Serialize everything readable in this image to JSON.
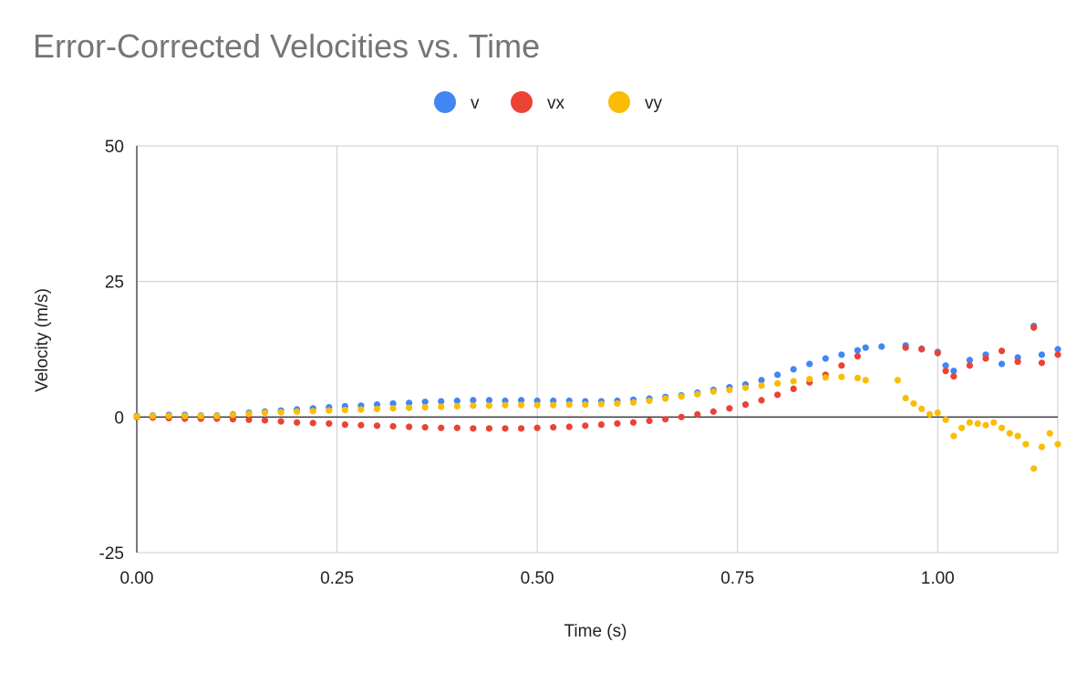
{
  "chart_data": {
    "type": "scatter",
    "title": "Error-Corrected Velocities vs. Time",
    "xlabel": "Time (s)",
    "ylabel": "Velocity (m/s)",
    "xlim": [
      0,
      1.15
    ],
    "ylim": [
      -25,
      50
    ],
    "x_ticks": [
      "0.00",
      "0.25",
      "0.50",
      "0.75",
      "1.00"
    ],
    "y_ticks": [
      "-25",
      "0",
      "25",
      "50"
    ],
    "grid": true,
    "legend_position": "top",
    "series": [
      {
        "name": "v",
        "color": "#4285f4",
        "points": [
          [
            0.0,
            0.2
          ],
          [
            0.02,
            0.3
          ],
          [
            0.04,
            0.4
          ],
          [
            0.06,
            0.4
          ],
          [
            0.08,
            0.3
          ],
          [
            0.1,
            0.3
          ],
          [
            0.12,
            0.5
          ],
          [
            0.14,
            0.8
          ],
          [
            0.16,
            1.0
          ],
          [
            0.18,
            1.2
          ],
          [
            0.2,
            1.4
          ],
          [
            0.22,
            1.6
          ],
          [
            0.24,
            1.8
          ],
          [
            0.26,
            2.0
          ],
          [
            0.28,
            2.1
          ],
          [
            0.3,
            2.3
          ],
          [
            0.32,
            2.5
          ],
          [
            0.34,
            2.6
          ],
          [
            0.36,
            2.8
          ],
          [
            0.38,
            2.9
          ],
          [
            0.4,
            3.0
          ],
          [
            0.42,
            3.1
          ],
          [
            0.44,
            3.1
          ],
          [
            0.46,
            3.0
          ],
          [
            0.48,
            3.1
          ],
          [
            0.5,
            3.0
          ],
          [
            0.52,
            3.0
          ],
          [
            0.54,
            3.0
          ],
          [
            0.56,
            2.9
          ],
          [
            0.58,
            2.9
          ],
          [
            0.6,
            3.0
          ],
          [
            0.62,
            3.2
          ],
          [
            0.64,
            3.4
          ],
          [
            0.66,
            3.7
          ],
          [
            0.68,
            4.0
          ],
          [
            0.7,
            4.5
          ],
          [
            0.72,
            5.0
          ],
          [
            0.74,
            5.5
          ],
          [
            0.76,
            6.0
          ],
          [
            0.78,
            6.8
          ],
          [
            0.8,
            7.8
          ],
          [
            0.82,
            8.8
          ],
          [
            0.84,
            9.8
          ],
          [
            0.86,
            10.8
          ],
          [
            0.88,
            11.5
          ],
          [
            0.9,
            12.3
          ],
          [
            0.91,
            12.8
          ],
          [
            0.93,
            13.0
          ],
          [
            0.96,
            13.2
          ],
          [
            0.98,
            12.6
          ],
          [
            1.0,
            12.0
          ],
          [
            1.01,
            9.5
          ],
          [
            1.02,
            8.5
          ],
          [
            1.04,
            10.5
          ],
          [
            1.06,
            11.5
          ],
          [
            1.08,
            9.8
          ],
          [
            1.1,
            11.0
          ],
          [
            1.12,
            16.8
          ],
          [
            1.13,
            11.5
          ],
          [
            1.15,
            12.5
          ]
        ]
      },
      {
        "name": "vx",
        "color": "#ea4335",
        "points": [
          [
            0.0,
            0.0
          ],
          [
            0.02,
            -0.1
          ],
          [
            0.04,
            -0.2
          ],
          [
            0.06,
            -0.3
          ],
          [
            0.08,
            -0.3
          ],
          [
            0.1,
            -0.3
          ],
          [
            0.12,
            -0.4
          ],
          [
            0.14,
            -0.5
          ],
          [
            0.16,
            -0.6
          ],
          [
            0.18,
            -0.8
          ],
          [
            0.2,
            -1.0
          ],
          [
            0.22,
            -1.1
          ],
          [
            0.24,
            -1.2
          ],
          [
            0.26,
            -1.4
          ],
          [
            0.28,
            -1.5
          ],
          [
            0.3,
            -1.6
          ],
          [
            0.32,
            -1.7
          ],
          [
            0.34,
            -1.8
          ],
          [
            0.36,
            -1.9
          ],
          [
            0.38,
            -2.0
          ],
          [
            0.4,
            -2.0
          ],
          [
            0.42,
            -2.1
          ],
          [
            0.44,
            -2.1
          ],
          [
            0.46,
            -2.1
          ],
          [
            0.48,
            -2.1
          ],
          [
            0.5,
            -2.0
          ],
          [
            0.52,
            -1.9
          ],
          [
            0.54,
            -1.8
          ],
          [
            0.56,
            -1.6
          ],
          [
            0.58,
            -1.4
          ],
          [
            0.6,
            -1.2
          ],
          [
            0.62,
            -1.0
          ],
          [
            0.64,
            -0.7
          ],
          [
            0.66,
            -0.4
          ],
          [
            0.68,
            0.0
          ],
          [
            0.7,
            0.5
          ],
          [
            0.72,
            1.0
          ],
          [
            0.74,
            1.6
          ],
          [
            0.76,
            2.3
          ],
          [
            0.78,
            3.1
          ],
          [
            0.8,
            4.1
          ],
          [
            0.82,
            5.2
          ],
          [
            0.84,
            6.4
          ],
          [
            0.86,
            7.8
          ],
          [
            0.88,
            9.5
          ],
          [
            0.9,
            11.2
          ],
          [
            0.96,
            12.8
          ],
          [
            0.98,
            12.5
          ],
          [
            1.0,
            11.8
          ],
          [
            1.01,
            8.5
          ],
          [
            1.02,
            7.5
          ],
          [
            1.04,
            9.5
          ],
          [
            1.06,
            10.8
          ],
          [
            1.08,
            12.2
          ],
          [
            1.1,
            10.2
          ],
          [
            1.12,
            16.5
          ],
          [
            1.13,
            10.0
          ],
          [
            1.15,
            11.5
          ]
        ]
      },
      {
        "name": "vy",
        "color": "#fbbc04",
        "points": [
          [
            0.0,
            0.1
          ],
          [
            0.02,
            0.2
          ],
          [
            0.04,
            0.2
          ],
          [
            0.06,
            0.2
          ],
          [
            0.08,
            0.2
          ],
          [
            0.1,
            0.2
          ],
          [
            0.12,
            0.4
          ],
          [
            0.14,
            0.6
          ],
          [
            0.16,
            0.8
          ],
          [
            0.18,
            0.9
          ],
          [
            0.2,
            1.0
          ],
          [
            0.22,
            1.1
          ],
          [
            0.24,
            1.2
          ],
          [
            0.26,
            1.3
          ],
          [
            0.28,
            1.4
          ],
          [
            0.3,
            1.5
          ],
          [
            0.32,
            1.6
          ],
          [
            0.34,
            1.7
          ],
          [
            0.36,
            1.8
          ],
          [
            0.38,
            1.9
          ],
          [
            0.4,
            2.0
          ],
          [
            0.42,
            2.1
          ],
          [
            0.44,
            2.1
          ],
          [
            0.46,
            2.2
          ],
          [
            0.48,
            2.2
          ],
          [
            0.5,
            2.2
          ],
          [
            0.52,
            2.2
          ],
          [
            0.54,
            2.3
          ],
          [
            0.56,
            2.3
          ],
          [
            0.58,
            2.4
          ],
          [
            0.6,
            2.5
          ],
          [
            0.62,
            2.7
          ],
          [
            0.64,
            3.0
          ],
          [
            0.66,
            3.4
          ],
          [
            0.68,
            3.8
          ],
          [
            0.7,
            4.2
          ],
          [
            0.72,
            4.7
          ],
          [
            0.74,
            5.0
          ],
          [
            0.76,
            5.4
          ],
          [
            0.78,
            5.8
          ],
          [
            0.8,
            6.2
          ],
          [
            0.82,
            6.6
          ],
          [
            0.84,
            7.0
          ],
          [
            0.86,
            7.3
          ],
          [
            0.88,
            7.4
          ],
          [
            0.9,
            7.2
          ],
          [
            0.91,
            6.8
          ],
          [
            0.95,
            6.8
          ],
          [
            0.96,
            3.5
          ],
          [
            0.97,
            2.5
          ],
          [
            0.98,
            1.5
          ],
          [
            0.99,
            0.5
          ],
          [
            1.0,
            0.8
          ],
          [
            1.01,
            -0.5
          ],
          [
            1.02,
            -3.5
          ],
          [
            1.03,
            -2.0
          ],
          [
            1.04,
            -1.0
          ],
          [
            1.05,
            -1.2
          ],
          [
            1.06,
            -1.5
          ],
          [
            1.07,
            -1.0
          ],
          [
            1.08,
            -2.0
          ],
          [
            1.09,
            -3.0
          ],
          [
            1.1,
            -3.5
          ],
          [
            1.11,
            -5.0
          ],
          [
            1.12,
            -9.5
          ],
          [
            1.13,
            -5.5
          ],
          [
            1.14,
            -3.0
          ],
          [
            1.15,
            -5.0
          ]
        ]
      }
    ]
  }
}
